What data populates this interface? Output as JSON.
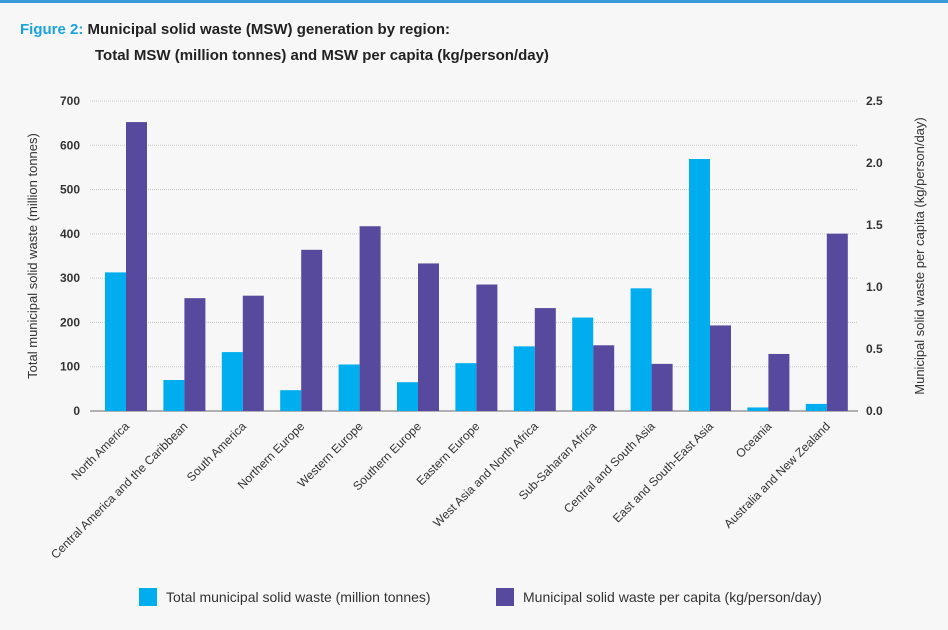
{
  "chart_data": {
    "type": "bar",
    "title_prefix": "Figure 2:",
    "title": "Municipal solid waste (MSW) generation by region:",
    "subtitle": "Total MSW (million tonnes) and MSW per capita (kg/person/day)",
    "categories": [
      "North America",
      "Central America and the Caribbean",
      "South America",
      "Northern Europe",
      "Western Europe",
      "Southern Europe",
      "Eastern Europe",
      "West Asia and North Africa",
      "Sub-Saharan Africa",
      "Central and South Asia",
      "East and South-East Asia",
      "Oceania",
      "Australia and New Zealand"
    ],
    "series": [
      {
        "name": "Total municipal solid waste (million tonnes)",
        "axis": "left",
        "color": "#00aeef",
        "values": [
          313,
          70,
          133,
          47,
          105,
          65,
          108,
          146,
          211,
          277,
          569,
          8,
          16
        ]
      },
      {
        "name": "Municipal solid waste per capita (kg/person/day)",
        "axis": "right",
        "color": "#574a9e",
        "values": [
          2.33,
          0.91,
          0.93,
          1.3,
          1.49,
          1.19,
          1.02,
          0.83,
          0.53,
          0.38,
          0.69,
          0.46,
          1.43
        ]
      }
    ],
    "ylabel": "Total municipal solid waste  (million tonnes)",
    "y2label": "Municipal solid waste per capita (kg/person/day)",
    "ylim": [
      0,
      700
    ],
    "y2lim": [
      0,
      2.5
    ],
    "yticks": [
      "0",
      "100",
      "200",
      "300",
      "400",
      "500",
      "600",
      "700"
    ],
    "y2ticks": [
      "0.0",
      "0.5",
      "1.0",
      "1.5",
      "2.0",
      "2.5"
    ],
    "grid": true,
    "legend_position": "bottom"
  }
}
